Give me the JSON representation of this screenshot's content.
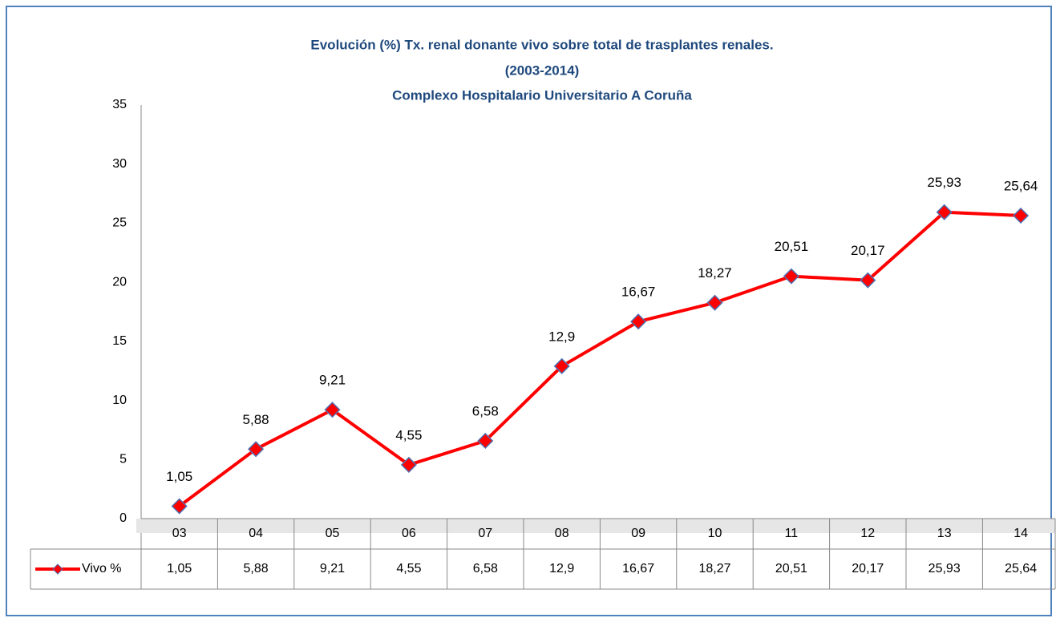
{
  "chart_data": {
    "type": "line",
    "title": [
      "Evolución (%) Tx. renal  donante vivo sobre total  de trasplantes renales.",
      "(2003-2014)",
      "Complexo Hospitalario Universitario A Coruña"
    ],
    "categories": [
      "03",
      "04",
      "05",
      "06",
      "07",
      "08",
      "09",
      "10",
      "11",
      "12",
      "13",
      "14"
    ],
    "series": [
      {
        "name": "Vivo %",
        "color": "#ff0000",
        "values": [
          1.05,
          5.88,
          9.21,
          4.55,
          6.58,
          12.9,
          16.67,
          18.27,
          20.51,
          20.17,
          25.93,
          25.64
        ],
        "value_labels": [
          "1,05",
          "5,88",
          "9,21",
          "4,55",
          "6,58",
          "12,9",
          "16,67",
          "18,27",
          "20,51",
          "20,17",
          "25,93",
          "25,64"
        ]
      }
    ],
    "ylim": [
      0,
      35
    ],
    "yticks": [
      0,
      5,
      10,
      15,
      20,
      25,
      30,
      35
    ],
    "grid": false,
    "data_table": true
  }
}
